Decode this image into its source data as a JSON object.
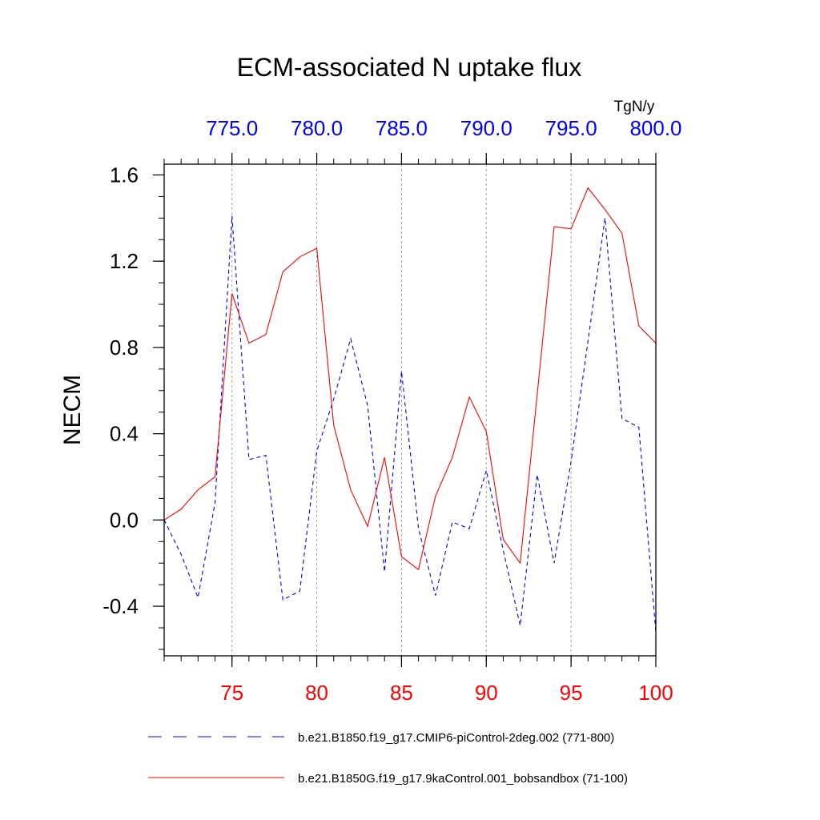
{
  "chart_data": {
    "type": "line",
    "title": "ECM-associated N uptake flux",
    "units_label": "TgN/y",
    "ylabel": "NECM",
    "xlim_bottom": [
      71,
      100
    ],
    "xlim_top": [
      771,
      800
    ],
    "ylim": [
      -0.63,
      1.65
    ],
    "grid": "vertical dashed lines at major x ticks",
    "bottom_axis": {
      "color": "#ff0000",
      "ticks": [
        75,
        80,
        85,
        90,
        95,
        100
      ],
      "tick_labels": [
        "75",
        "80",
        "85",
        "90",
        "95",
        "100"
      ]
    },
    "top_axis": {
      "color": "#0000ff",
      "ticks": [
        775,
        780,
        785,
        790,
        795,
        800
      ],
      "tick_labels": [
        "775.0",
        "780.0",
        "785.0",
        "790.0",
        "795.0",
        "800.0"
      ]
    },
    "y_axis": {
      "ticks": [
        -0.4,
        0.0,
        0.4,
        0.8,
        1.2,
        1.6
      ],
      "tick_labels": [
        "-0.4",
        "0.0",
        "0.4",
        "0.8",
        "1.2",
        "1.6"
      ]
    },
    "legend_position": "bottom",
    "series": [
      {
        "name": "b.e21.B1850.f19_g17.CMIP6-piControl-2deg.002 (771-800)",
        "color": "#0000ff",
        "style": "dashed",
        "axis": "top",
        "x": [
          771,
          772,
          773,
          774,
          775,
          776,
          777,
          778,
          779,
          780,
          781,
          782,
          783,
          784,
          785,
          786,
          787,
          788,
          789,
          790,
          791,
          792,
          793,
          794,
          795,
          796,
          797,
          798,
          799,
          800
        ],
        "values": [
          0.0,
          -0.16,
          -0.36,
          0.08,
          1.41,
          0.28,
          0.3,
          -0.37,
          -0.33,
          0.32,
          0.56,
          0.84,
          0.53,
          -0.24,
          0.69,
          -0.04,
          -0.35,
          -0.01,
          -0.04,
          0.23,
          -0.14,
          -0.49,
          0.21,
          -0.2,
          0.27,
          0.83,
          1.4,
          0.47,
          0.43,
          -0.52
        ]
      },
      {
        "name": "b.e21.B1850G.f19_g17.9kaControl.001_bobsandbox (71-100)",
        "color": "#ff0000",
        "style": "solid",
        "axis": "bottom",
        "x": [
          71,
          72,
          73,
          74,
          75,
          76,
          77,
          78,
          79,
          80,
          81,
          82,
          83,
          84,
          85,
          86,
          87,
          88,
          89,
          90,
          91,
          92,
          93,
          94,
          95,
          96,
          97,
          98,
          99,
          100
        ],
        "values": [
          0.0,
          0.05,
          0.14,
          0.2,
          1.05,
          0.82,
          0.86,
          1.15,
          1.22,
          1.26,
          0.44,
          0.14,
          -0.03,
          0.29,
          -0.17,
          -0.23,
          0.11,
          0.29,
          0.57,
          0.41,
          -0.09,
          -0.2,
          0.58,
          1.36,
          1.35,
          1.54,
          1.44,
          1.33,
          0.9,
          0.82
        ]
      }
    ]
  }
}
